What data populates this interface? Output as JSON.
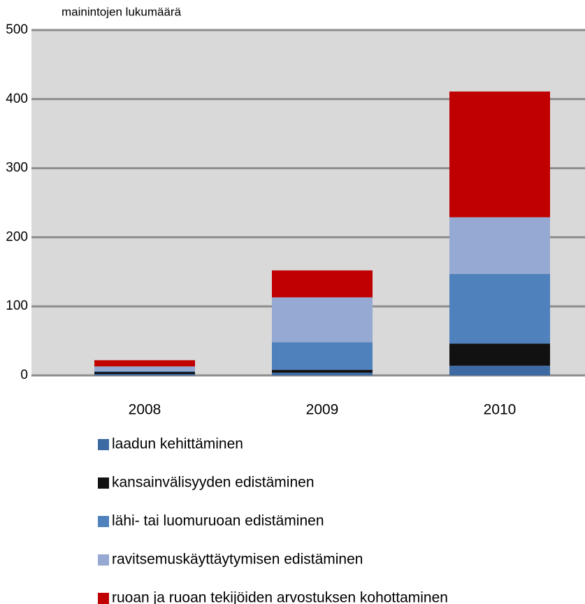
{
  "chart_data": {
    "type": "bar",
    "stacked": true,
    "ylabel": "mainintojen lukumäärä",
    "categories": [
      "2008",
      "2009",
      "2010"
    ],
    "series": [
      {
        "name": "laadun kehittäminen",
        "color": "#3e6aa3",
        "values": [
          2,
          4,
          14
        ]
      },
      {
        "name": "kansainvälisyyden edistäminen",
        "color": "#111111",
        "values": [
          3,
          4,
          32
        ]
      },
      {
        "name": "lähi- tai luomuruoan edistäminen",
        "color": "#4f81bd",
        "values": [
          1,
          40,
          101
        ]
      },
      {
        "name": "ravitsemuskäyttäytymisen edistäminen",
        "color": "#95a9d2",
        "values": [
          7,
          65,
          82
        ]
      },
      {
        "name": "ruoan ja ruoan tekijöiden arvostuksen kohottaminen",
        "color": "#c00000",
        "values": [
          9,
          39,
          182
        ]
      }
    ],
    "ylim": [
      0,
      500
    ],
    "yticks": [
      0,
      100,
      200,
      300,
      400,
      500
    ],
    "grid": true,
    "legend": "bottom"
  }
}
